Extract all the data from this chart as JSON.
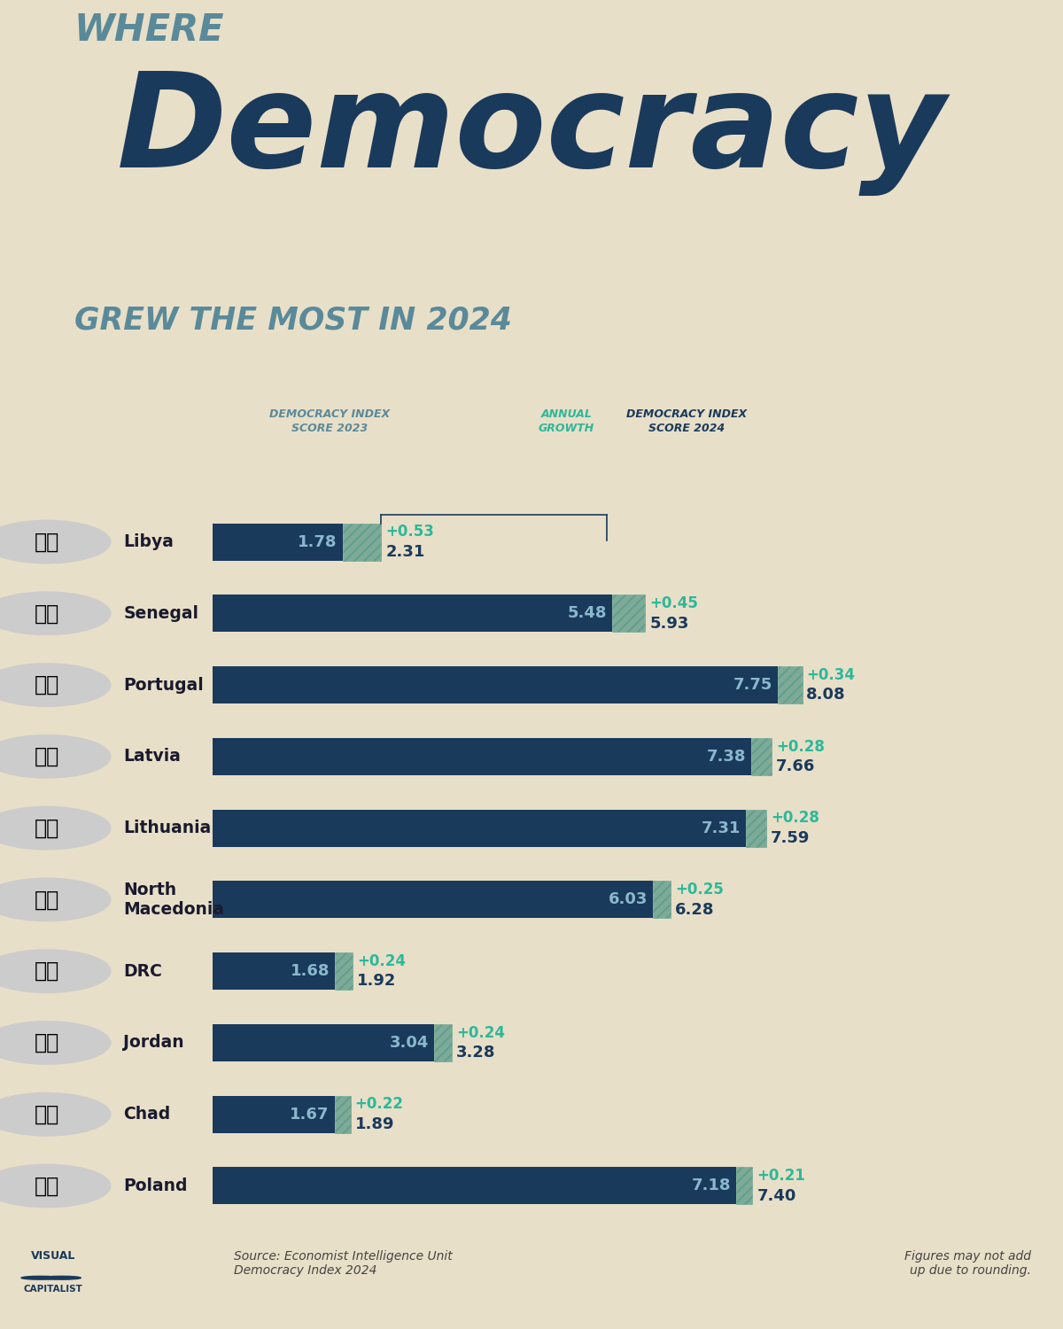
{
  "title_where": "WHERE",
  "title_democracy": "Democracy",
  "title_subtitle": "GREW THE MOST IN 2024",
  "col_header_2023": "DEMOCRACY INDEX\nSCORE 2023",
  "col_header_growth": "ANNUAL\nGROWTH",
  "col_header_2024": "DEMOCRACY INDEX\nSCORE 2024",
  "countries": [
    "Libya",
    "Senegal",
    "Portugal",
    "Latvia",
    "Lithuania",
    "North\nMacedonia",
    "DRC",
    "Jordan",
    "Chad",
    "Poland"
  ],
  "score_2023": [
    1.78,
    5.48,
    7.75,
    7.38,
    7.31,
    6.03,
    1.68,
    3.04,
    1.67,
    7.18
  ],
  "growth": [
    0.53,
    0.45,
    0.34,
    0.28,
    0.28,
    0.25,
    0.24,
    0.24,
    0.22,
    0.21
  ],
  "score_2024": [
    2.31,
    5.93,
    8.08,
    7.66,
    7.59,
    6.28,
    1.92,
    3.28,
    1.89,
    7.4
  ],
  "bar_color": "#1a3a5c",
  "growth_bar_color": "#4a9a8a",
  "bg_color": "#e8dfc8",
  "text_color_dark": "#1a3a5c",
  "text_color_score_inside": "#8ab0c8",
  "text_color_growth_label": "#2db89a",
  "text_color_2024": "#1a3a5c",
  "header_color_2023": "#5a8a9a",
  "header_color_growth": "#2db89a",
  "header_color_2024": "#1a3a5c",
  "source_text": "Source: Economist Intelligence Unit\nDemocracy Index 2024",
  "footnote_text": "Figures may not add\nup due to rounding.",
  "max_bar": 9.0,
  "flag_colors": [
    [
      "#000000",
      "#cc0000",
      "#009900"
    ],
    [
      "#009900",
      "#ffcc00",
      "#cc0000"
    ],
    [
      "#cc0000",
      "#009900"
    ],
    [
      "#cc0000",
      "#ffffff"
    ],
    [
      "#006600",
      "#cc0000",
      "#ffcc00"
    ],
    [
      "#cc0000",
      "#ffcc00",
      "#006600"
    ],
    [
      "#0055a4",
      "#cc0000"
    ],
    [
      "#000000",
      "#ffffff",
      "#cc0000",
      "#009900"
    ],
    [
      "#0033cc",
      "#ffcc00",
      "#cc0000"
    ],
    [
      "#cc0000",
      "#ffffff"
    ]
  ]
}
